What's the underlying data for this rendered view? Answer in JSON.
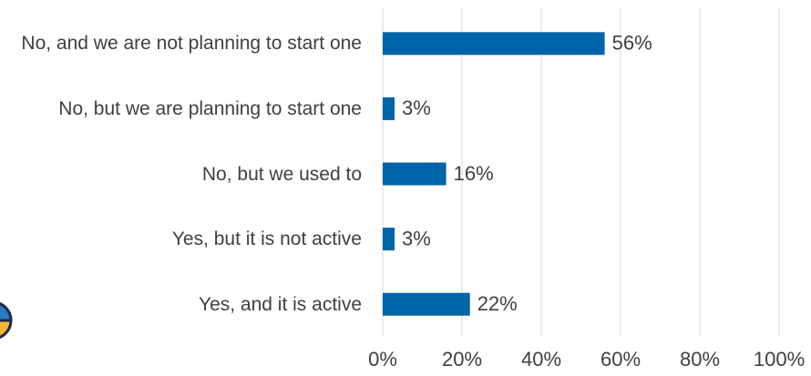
{
  "chart_data": {
    "type": "bar",
    "orientation": "horizontal",
    "categories": [
      "No, and we are not planning to start one",
      "No, but we are planning to start one",
      "No, but we used to",
      "Yes, but it is not active",
      "Yes, and it is active"
    ],
    "values": [
      56,
      3,
      16,
      3,
      22
    ],
    "value_labels": [
      "56%",
      "3%",
      "16%",
      "3%",
      "22%"
    ],
    "color": "#0064a8",
    "xlim": [
      0,
      100
    ],
    "xticks": [
      {
        "value": 0,
        "label": "0%"
      },
      {
        "value": 20,
        "label": "20%"
      },
      {
        "value": 40,
        "label": "40%"
      },
      {
        "value": 60,
        "label": "60%"
      },
      {
        "value": 80,
        "label": "80%"
      },
      {
        "value": 100,
        "label": "100%"
      }
    ],
    "grid": true
  }
}
